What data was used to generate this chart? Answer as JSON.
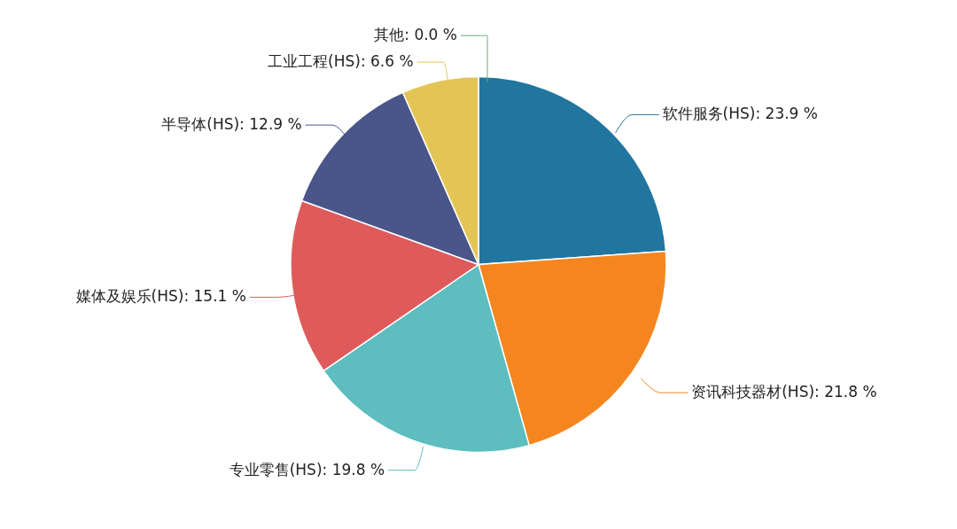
{
  "chart_data": {
    "type": "pie",
    "categories": [
      "软件服务(HS)",
      "资讯科技器材(HS)",
      "专业零售(HS)",
      "媒体及娱乐(HS)",
      "半导体(HS)",
      "工业工程(HS)",
      "其他"
    ],
    "values": [
      23.9,
      21.8,
      19.8,
      15.1,
      12.9,
      6.6,
      0.0
    ],
    "colors": [
      "#21769f",
      "#f5861f",
      "#5dbdbf",
      "#df5b5b",
      "#4a5589",
      "#e3c556",
      "#6aaa7e"
    ],
    "value_labels": [
      ": 23.9 %",
      ": 21.8 %",
      ": 19.8 %",
      ": 15.1 %",
      ": 12.9 %",
      ": 6.6 %",
      ": 0.0 %"
    ]
  }
}
